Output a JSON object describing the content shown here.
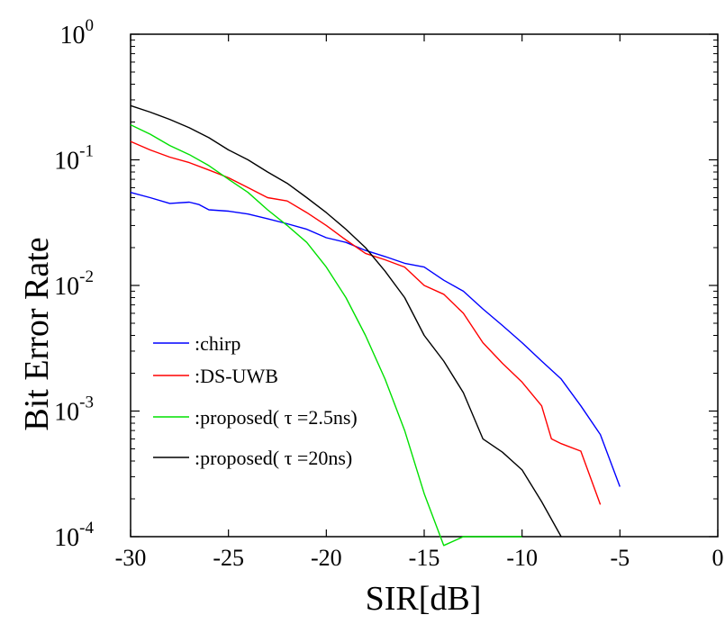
{
  "chart_data": {
    "type": "line",
    "title": "",
    "xlabel": "SIR[dB]",
    "ylabel": "Bit Error Rate",
    "xlim": [
      -30,
      0
    ],
    "ylim": [
      0.0001,
      1
    ],
    "yscale": "log",
    "grid": false,
    "legend_position": "bottom-left",
    "x_ticks": [
      -30,
      -25,
      -20,
      -15,
      -10,
      -5,
      0
    ],
    "x_tick_labels": [
      "-30",
      "-25",
      "-20",
      "-15",
      "-10",
      "-5",
      "0"
    ],
    "y_ticks": [
      {
        "value": 0.0001,
        "base": "10",
        "exp": "-4"
      },
      {
        "value": 0.001,
        "base": "10",
        "exp": "-3"
      },
      {
        "value": 0.01,
        "base": "10",
        "exp": "-2"
      },
      {
        "value": 0.1,
        "base": "10",
        "exp": "-1"
      },
      {
        "value": 1,
        "base": "10",
        "exp": "0"
      }
    ],
    "series": [
      {
        "name": ":chirp",
        "color": "#0000ff",
        "x": [
          -30,
          -29,
          -28,
          -27,
          -26.5,
          -26,
          -25,
          -24,
          -23,
          -22,
          -21,
          -20,
          -19,
          -18,
          -17,
          -16,
          -15,
          -14,
          -13,
          -12,
          -11,
          -10,
          -9,
          -8,
          -7,
          -6,
          -5
        ],
        "y": [
          0.055,
          0.05,
          0.045,
          0.046,
          0.044,
          0.04,
          0.039,
          0.037,
          0.034,
          0.031,
          0.028,
          0.024,
          0.022,
          0.019,
          0.017,
          0.015,
          0.014,
          0.011,
          0.009,
          0.0065,
          0.0048,
          0.0035,
          0.0025,
          0.0018,
          0.0011,
          0.00065,
          0.00025
        ]
      },
      {
        "name": ":DS-UWB",
        "color": "#ff0000",
        "x": [
          -30,
          -29,
          -28,
          -27,
          -26,
          -25,
          -24,
          -23,
          -22,
          -21,
          -20,
          -19,
          -18,
          -17,
          -16,
          -15,
          -14,
          -13,
          -12,
          -11,
          -10,
          -9,
          -8.5,
          -8,
          -7,
          -6
        ],
        "y": [
          0.14,
          0.12,
          0.105,
          0.095,
          0.083,
          0.072,
          0.06,
          0.05,
          0.047,
          0.038,
          0.03,
          0.023,
          0.018,
          0.016,
          0.014,
          0.01,
          0.0085,
          0.006,
          0.0035,
          0.0024,
          0.0017,
          0.0011,
          0.0006,
          0.00055,
          0.00048,
          0.00018
        ]
      },
      {
        "name": ":proposed( τ =2.5ns)",
        "color": "#00e000",
        "x": [
          -30,
          -29,
          -28,
          -27,
          -26,
          -25,
          -24,
          -23,
          -22,
          -21,
          -20,
          -19,
          -18,
          -17,
          -16,
          -15,
          -14,
          -13,
          -12,
          -11.5,
          -10
        ],
        "y": [
          0.19,
          0.16,
          0.13,
          0.11,
          0.09,
          0.07,
          0.055,
          0.04,
          0.03,
          0.022,
          0.014,
          0.008,
          0.004,
          0.0018,
          0.0007,
          0.00022,
          8.5e-05,
          0.0001,
          0.0001,
          0.0001,
          0.0001
        ]
      },
      {
        "name": ":proposed( τ =20ns)",
        "color": "#000000",
        "x": [
          -30,
          -29,
          -28,
          -27,
          -26,
          -25,
          -24,
          -23,
          -22,
          -21,
          -20,
          -19,
          -18,
          -17,
          -16,
          -15,
          -14,
          -13,
          -12,
          -11,
          -10,
          -9,
          -8
        ],
        "y": [
          0.27,
          0.24,
          0.21,
          0.18,
          0.15,
          0.12,
          0.1,
          0.08,
          0.065,
          0.05,
          0.038,
          0.028,
          0.02,
          0.013,
          0.008,
          0.004,
          0.0025,
          0.0014,
          0.0006,
          0.00047,
          0.00034,
          0.00019,
          0.0001
        ]
      }
    ]
  }
}
